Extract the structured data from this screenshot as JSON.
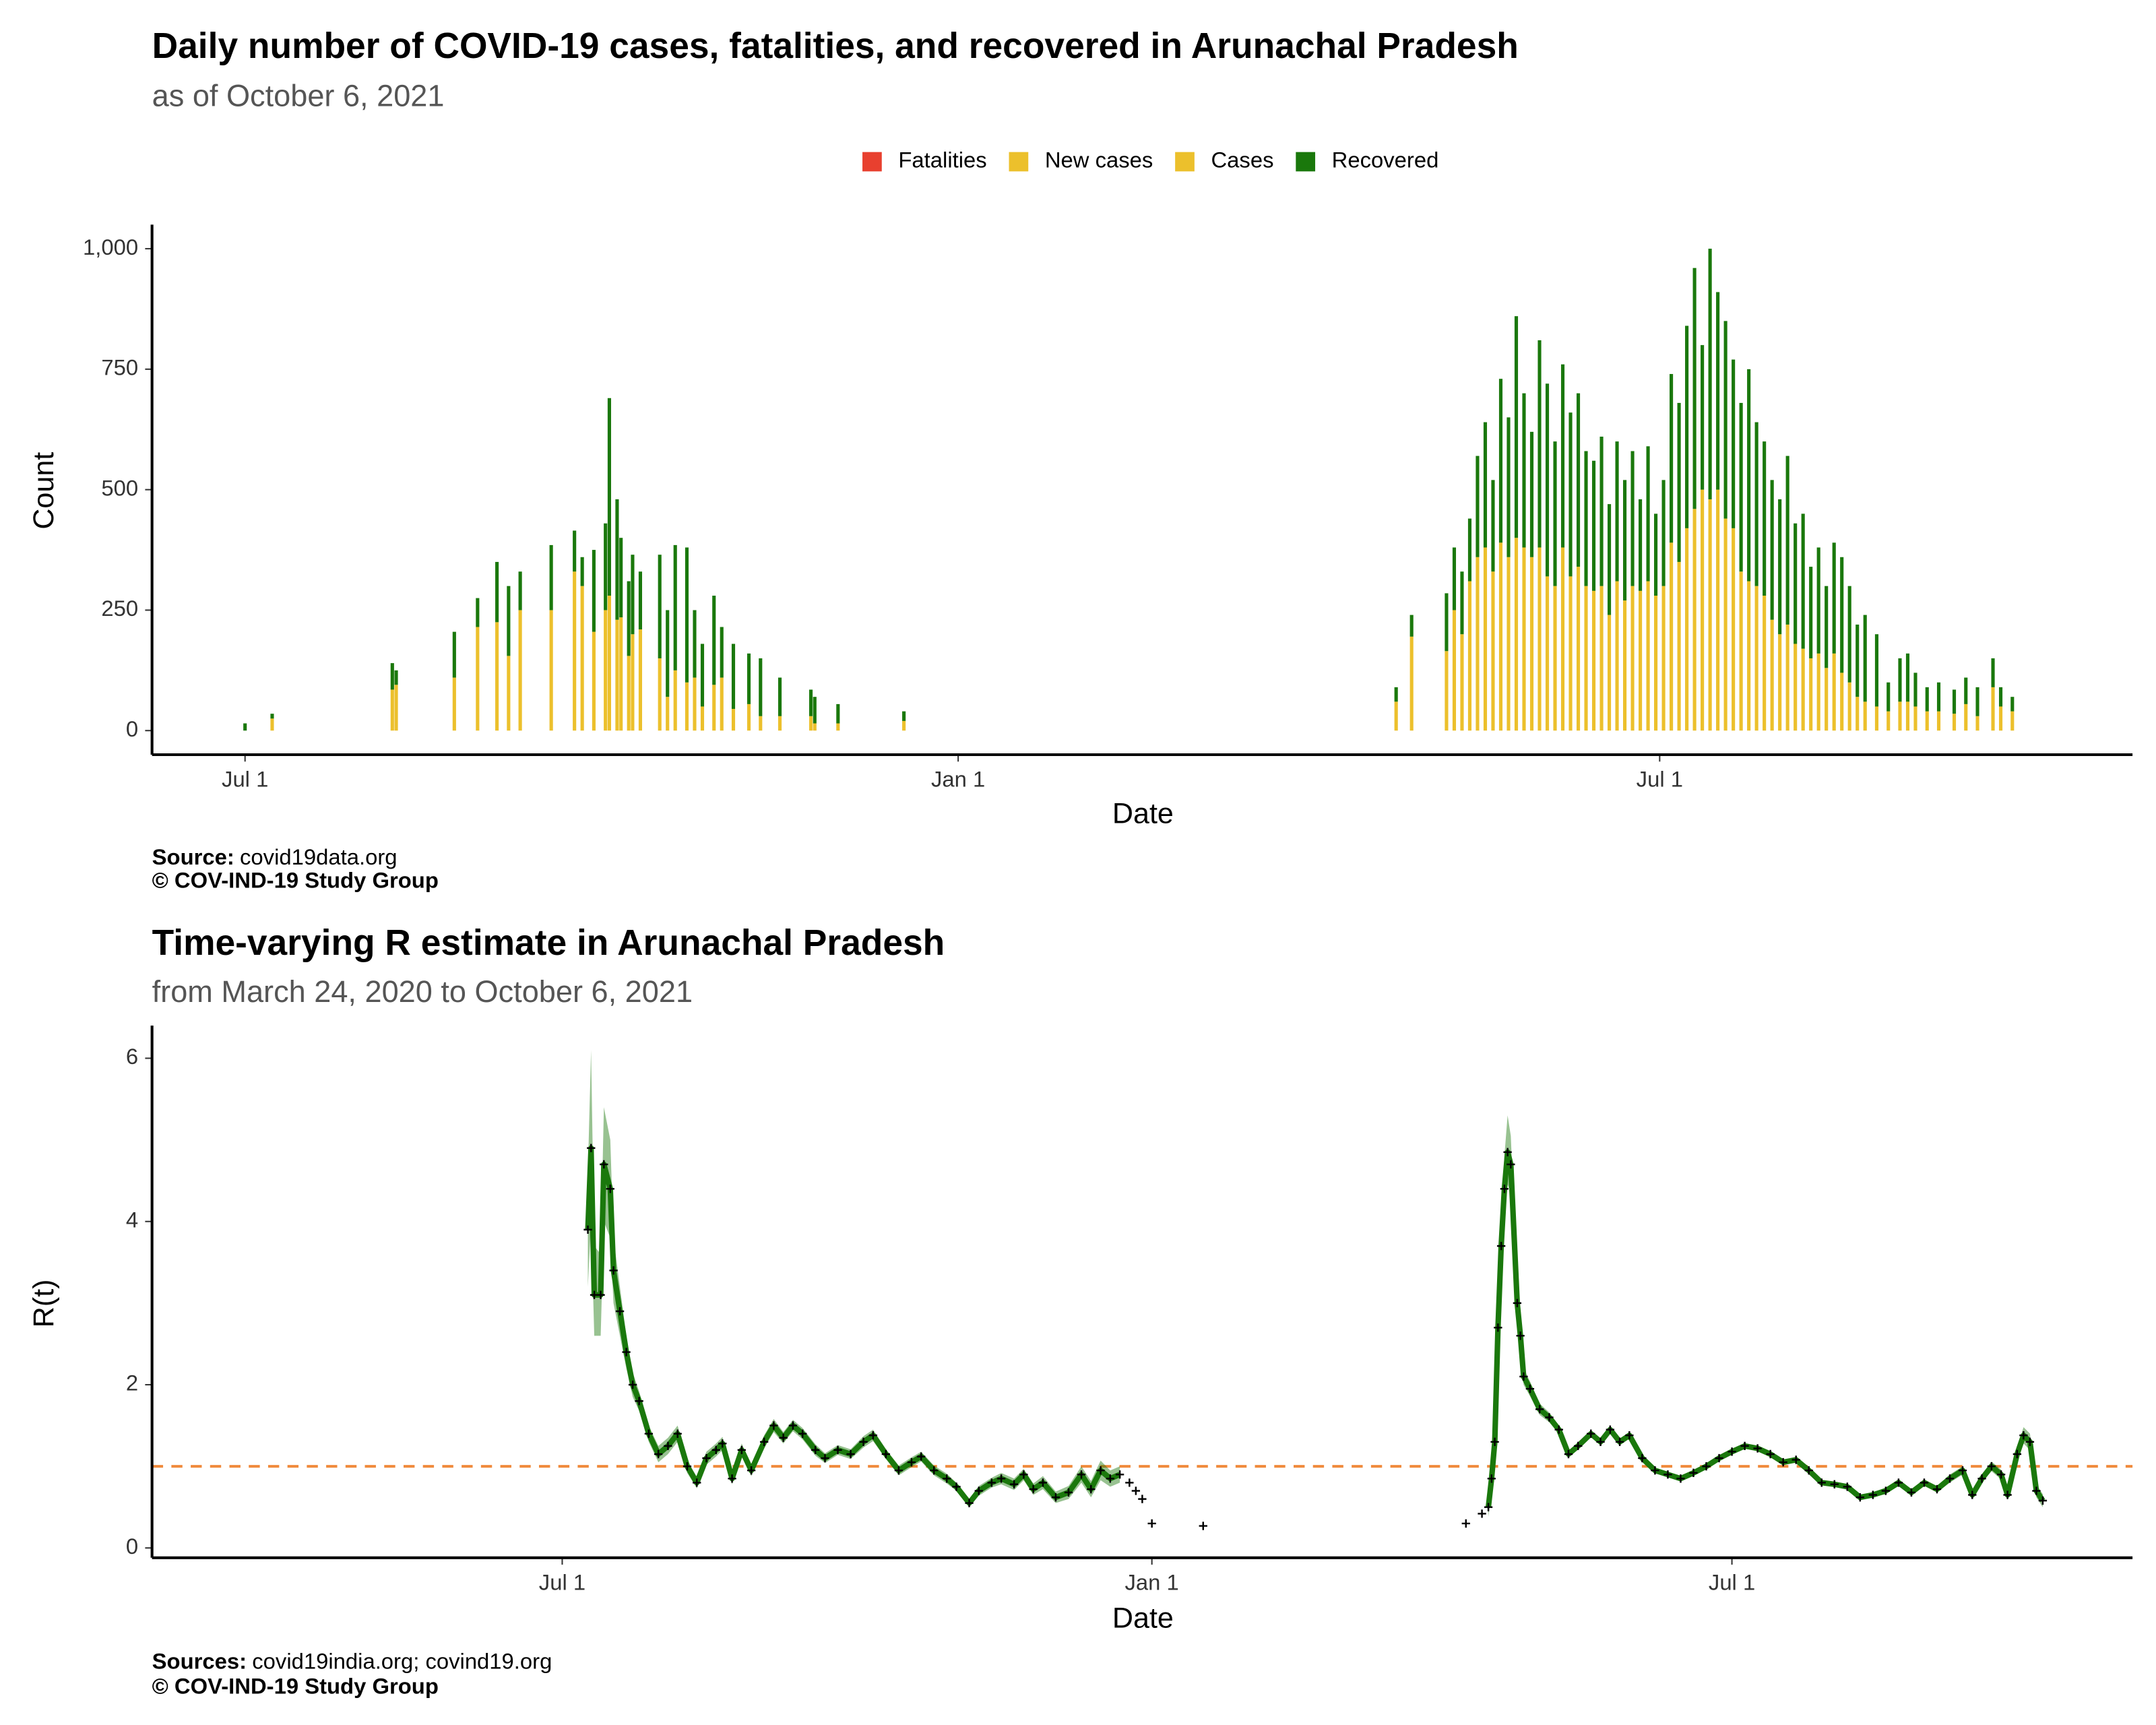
{
  "chart_data": [
    {
      "type": "bar",
      "title": "Daily number of COVID-19 cases, fatalities, and recovered in Arunachal Pradesh",
      "subtitle": "as of October  6, 2021",
      "legend": "top",
      "xlabel": "Date",
      "ylabel": "Count",
      "source_label": "Source:",
      "source": "covid19data.org",
      "copyright": "© COV-IND-19 Study Group",
      "xlim": [
        "2020-06-07",
        "2021-10-31"
      ],
      "xticks": [
        {
          "value": "2020-07-01",
          "label": "Jul 1"
        },
        {
          "value": "2021-01-01",
          "label": "Jan 1"
        },
        {
          "value": "2021-07-01",
          "label": "Jul 1"
        }
      ],
      "ylim": [
        -50,
        1050
      ],
      "yticks": [
        0,
        250,
        500,
        750,
        {
          "value": 1000,
          "label": "1,000"
        }
      ],
      "x": [
        "2020-07-01",
        "2020-07-08",
        "2020-08-08",
        "2020-08-09",
        "2020-08-24",
        "2020-08-30",
        "2020-09-04",
        "2020-09-07",
        "2020-09-10",
        "2020-09-18",
        "2020-09-24",
        "2020-09-26",
        "2020-09-29",
        "2020-10-02",
        "2020-10-03",
        "2020-10-05",
        "2020-10-06",
        "2020-10-08",
        "2020-10-09",
        "2020-10-11",
        "2020-10-16",
        "2020-10-18",
        "2020-10-20",
        "2020-10-23",
        "2020-10-25",
        "2020-10-27",
        "2020-10-30",
        "2020-11-01",
        "2020-11-04",
        "2020-11-08",
        "2020-11-11",
        "2020-11-16",
        "2020-11-24",
        "2020-11-25",
        "2020-12-01",
        "2020-12-18",
        "2021-04-24",
        "2021-04-28",
        "2021-05-07",
        "2021-05-09",
        "2021-05-11",
        "2021-05-13",
        "2021-05-15",
        "2021-05-17",
        "2021-05-19",
        "2021-05-21",
        "2021-05-23",
        "2021-05-25",
        "2021-05-27",
        "2021-05-29",
        "2021-05-31",
        "2021-06-02",
        "2021-06-04",
        "2021-06-06",
        "2021-06-08",
        "2021-06-10",
        "2021-06-12",
        "2021-06-14",
        "2021-06-16",
        "2021-06-18",
        "2021-06-20",
        "2021-06-22",
        "2021-06-24",
        "2021-06-26",
        "2021-06-28",
        "2021-06-30",
        "2021-07-02",
        "2021-07-04",
        "2021-07-06",
        "2021-07-08",
        "2021-07-10",
        "2021-07-12",
        "2021-07-14",
        "2021-07-16",
        "2021-07-18",
        "2021-07-20",
        "2021-07-22",
        "2021-07-24",
        "2021-07-26",
        "2021-07-28",
        "2021-07-30",
        "2021-08-01",
        "2021-08-03",
        "2021-08-05",
        "2021-08-07",
        "2021-08-09",
        "2021-08-11",
        "2021-08-13",
        "2021-08-15",
        "2021-08-17",
        "2021-08-19",
        "2021-08-21",
        "2021-08-23",
        "2021-08-26",
        "2021-08-29",
        "2021-09-01",
        "2021-09-03",
        "2021-09-05",
        "2021-09-08",
        "2021-09-11",
        "2021-09-15",
        "2021-09-18",
        "2021-09-21",
        "2021-09-25",
        "2021-09-27",
        "2021-09-30"
      ],
      "series": [
        {
          "name": "Fatalities",
          "color": "#e8402f",
          "values": [
            0,
            0,
            0,
            0,
            0,
            0,
            0,
            0,
            0,
            0,
            0,
            0,
            0,
            0,
            0,
            0,
            0,
            0,
            0,
            0,
            0,
            0,
            0,
            0,
            0,
            0,
            0,
            0,
            0,
            0,
            0,
            0,
            0,
            0,
            0,
            0,
            0,
            0,
            0,
            0,
            0,
            0,
            0,
            0,
            0,
            0,
            0,
            0,
            0,
            0,
            0,
            0,
            0,
            0,
            0,
            0,
            0,
            0,
            0,
            0,
            0,
            0,
            0,
            0,
            0,
            0,
            0,
            0,
            0,
            0,
            0,
            0,
            0,
            0,
            0,
            0,
            0,
            0,
            0,
            0,
            0,
            0,
            0,
            0,
            0,
            0,
            0,
            0,
            0,
            0,
            0,
            0,
            0,
            0,
            0,
            0,
            0,
            0,
            0,
            0,
            0,
            0,
            0,
            0,
            0,
            0
          ]
        },
        {
          "name": "New cases",
          "color": "#ecc02c",
          "values": [
            0,
            25,
            85,
            95,
            110,
            215,
            225,
            155,
            250,
            250,
            330,
            300,
            205,
            250,
            280,
            230,
            235,
            155,
            200,
            210,
            150,
            70,
            125,
            100,
            110,
            50,
            95,
            110,
            45,
            55,
            30,
            30,
            30,
            15,
            15,
            20,
            60,
            195,
            165,
            250,
            200,
            310,
            360,
            380,
            330,
            390,
            360,
            400,
            380,
            360,
            380,
            320,
            300,
            380,
            320,
            340,
            300,
            290,
            300,
            240,
            310,
            270,
            300,
            290,
            310,
            280,
            300,
            390,
            350,
            420,
            460,
            500,
            480,
            500,
            440,
            420,
            330,
            310,
            300,
            280,
            230,
            200,
            220,
            180,
            170,
            150,
            160,
            130,
            160,
            120,
            100,
            70,
            60,
            50,
            40,
            60,
            60,
            50,
            40,
            40,
            35,
            55,
            30,
            90,
            50,
            40
          ]
        },
        {
          "name": "Cases",
          "color": "#ecc02c",
          "values": [
            null,
            null,
            null,
            null,
            null,
            null,
            null,
            null,
            null,
            null,
            null,
            null,
            null,
            null,
            null,
            null,
            null,
            null,
            null,
            null,
            null,
            null,
            null,
            null,
            null,
            null,
            null,
            null,
            null,
            null,
            null,
            null,
            null,
            null,
            null,
            null,
            null,
            null,
            null,
            null,
            null,
            null,
            null,
            null,
            null,
            null,
            null,
            null,
            null,
            null,
            null,
            null,
            null,
            null,
            null,
            null,
            null,
            null,
            null,
            null,
            null,
            null,
            null,
            null,
            null,
            null,
            null,
            null,
            null,
            null,
            null,
            null,
            null,
            null,
            null,
            null,
            null,
            null,
            null,
            null,
            null,
            null,
            null,
            null,
            null,
            null,
            null,
            null,
            null,
            null,
            null,
            null,
            null,
            null,
            null,
            null,
            null,
            null,
            null,
            null,
            null,
            null,
            null,
            null,
            null,
            null
          ]
        },
        {
          "name": "Recovered",
          "color": "#1a780c",
          "values": [
            15,
            10,
            55,
            30,
            95,
            60,
            125,
            145,
            80,
            135,
            85,
            60,
            170,
            180,
            410,
            250,
            165,
            155,
            165,
            120,
            215,
            180,
            260,
            280,
            140,
            130,
            185,
            105,
            135,
            105,
            120,
            80,
            55,
            55,
            40,
            20,
            30,
            45,
            120,
            130,
            130,
            130,
            210,
            260,
            190,
            340,
            290,
            460,
            320,
            260,
            430,
            400,
            300,
            380,
            340,
            360,
            280,
            270,
            310,
            230,
            290,
            250,
            280,
            190,
            280,
            170,
            220,
            350,
            330,
            420,
            500,
            300,
            520,
            410,
            410,
            350,
            350,
            440,
            340,
            320,
            290,
            280,
            350,
            250,
            280,
            190,
            220,
            170,
            230,
            240,
            200,
            150,
            180,
            150,
            60,
            90,
            100,
            70,
            50,
            60,
            50,
            55,
            60,
            60,
            40,
            30
          ]
        }
      ]
    },
    {
      "type": "line",
      "title": "Time-varying R estimate in Arunachal Pradesh",
      "subtitle": "from March 24, 2020 to October  6, 2021",
      "xlabel": "Date",
      "ylabel": "R(t)",
      "source_label": "Sources:",
      "source": "covid19india.org; covind19.org",
      "copyright": "© COV-IND-19 Study Group",
      "color": "#1a780c",
      "point_color": "#000000",
      "hline": 1,
      "hline_color": "#f08a3c",
      "xlim": [
        "2020-02-24",
        "2021-11-03"
      ],
      "xticks": [
        {
          "value": "2020-07-01",
          "label": "Jul 1"
        },
        {
          "value": "2021-01-01",
          "label": "Jan 1"
        },
        {
          "value": "2021-07-01",
          "label": "Jul 1"
        }
      ],
      "ylim": [
        -0.12,
        6.4
      ],
      "yticks": [
        0,
        2,
        4,
        6
      ],
      "x": [
        "2020-07-09",
        "2020-07-10",
        "2020-07-11",
        "2020-07-13",
        "2020-07-14",
        "2020-07-16",
        "2020-07-17",
        "2020-07-19",
        "2020-07-21",
        "2020-07-23",
        "2020-07-25",
        "2020-07-28",
        "2020-07-31",
        "2020-08-03",
        "2020-08-06",
        "2020-08-09",
        "2020-08-12",
        "2020-08-15",
        "2020-08-18",
        "2020-08-20",
        "2020-08-23",
        "2020-08-26",
        "2020-08-29",
        "2020-09-02",
        "2020-09-05",
        "2020-09-08",
        "2020-09-11",
        "2020-09-14",
        "2020-09-18",
        "2020-09-21",
        "2020-09-25",
        "2020-09-29",
        "2020-10-03",
        "2020-10-06",
        "2020-10-10",
        "2020-10-14",
        "2020-10-18",
        "2020-10-21",
        "2020-10-25",
        "2020-10-29",
        "2020-11-01",
        "2020-11-05",
        "2020-11-08",
        "2020-11-12",
        "2020-11-15",
        "2020-11-19",
        "2020-11-22",
        "2020-11-25",
        "2020-11-28",
        "2020-12-02",
        "2020-12-06",
        "2020-12-10",
        "2020-12-13",
        "2020-12-16",
        "2020-12-19",
        "2020-12-22",
        "2020-12-24",
        "2020-12-25",
        "2020-12-26",
        "2020-12-27",
        "2020-12-28",
        "2020-12-29",
        "2020-12-30",
        "2021-01-01",
        "2021-01-02",
        "2021-01-17",
        "2021-01-18",
        "2021-04-09",
        "2021-04-10",
        "2021-04-14",
        "2021-04-15",
        "2021-04-16",
        "2021-04-17",
        "2021-04-18",
        "2021-04-19",
        "2021-04-20",
        "2021-04-21",
        "2021-04-22",
        "2021-04-23",
        "2021-04-25",
        "2021-04-26",
        "2021-04-27",
        "2021-04-29",
        "2021-05-02",
        "2021-05-05",
        "2021-05-08",
        "2021-05-11",
        "2021-05-14",
        "2021-05-18",
        "2021-05-21",
        "2021-05-24",
        "2021-05-27",
        "2021-05-30",
        "2021-06-03",
        "2021-06-07",
        "2021-06-11",
        "2021-06-15",
        "2021-06-19",
        "2021-06-23",
        "2021-06-27",
        "2021-07-01",
        "2021-07-05",
        "2021-07-09",
        "2021-07-13",
        "2021-07-17",
        "2021-07-21",
        "2021-07-25",
        "2021-07-29",
        "2021-08-02",
        "2021-08-06",
        "2021-08-10",
        "2021-08-14",
        "2021-08-18",
        "2021-08-22",
        "2021-08-26",
        "2021-08-30",
        "2021-09-03",
        "2021-09-07",
        "2021-09-11",
        "2021-09-14",
        "2021-09-17",
        "2021-09-20",
        "2021-09-23",
        "2021-09-25",
        "2021-09-28",
        "2021-09-30",
        "2021-10-02",
        "2021-10-04",
        "2021-10-06"
      ],
      "values": [
        3.9,
        4.9,
        3.1,
        3.1,
        4.7,
        4.4,
        3.4,
        2.9,
        2.4,
        2.0,
        1.8,
        1.4,
        1.15,
        1.25,
        1.4,
        1.0,
        0.8,
        1.1,
        1.2,
        1.28,
        0.85,
        1.2,
        0.95,
        1.3,
        1.5,
        1.35,
        1.5,
        1.4,
        1.2,
        1.1,
        1.2,
        1.15,
        1.3,
        1.38,
        1.15,
        0.95,
        1.05,
        1.12,
        0.95,
        0.85,
        0.75,
        0.55,
        0.7,
        0.8,
        0.85,
        0.78,
        0.9,
        0.72,
        0.8,
        0.62,
        0.68,
        0.9,
        0.72,
        0.95,
        0.85,
        0.9,
        null,
        0.8,
        null,
        0.7,
        null,
        0.6,
        null,
        0.3,
        null,
        0.27,
        null,
        0.3,
        null,
        0.42,
        null,
        0.5,
        0.85,
        1.3,
        2.7,
        3.7,
        4.4,
        4.85,
        4.7,
        3.0,
        2.6,
        2.1,
        1.95,
        1.7,
        1.6,
        1.45,
        1.15,
        1.25,
        1.4,
        1.3,
        1.45,
        1.3,
        1.38,
        1.1,
        0.95,
        0.9,
        0.85,
        0.92,
        1.0,
        1.1,
        1.18,
        1.25,
        1.22,
        1.15,
        1.05,
        1.08,
        0.95,
        0.8,
        0.78,
        0.75,
        0.62,
        0.65,
        0.7,
        0.8,
        0.68,
        0.8,
        0.72,
        0.85,
        0.95,
        0.65,
        0.85,
        1.0,
        0.9,
        0.65,
        1.15,
        1.38,
        1.3,
        0.7,
        0.58
      ],
      "lower": [
        3.2,
        4.0,
        2.6,
        2.6,
        4.0,
        3.8,
        3.0,
        2.6,
        2.2,
        1.85,
        1.68,
        1.3,
        1.05,
        1.15,
        1.3,
        0.92,
        0.73,
        1.02,
        1.12,
        1.2,
        0.78,
        1.12,
        0.88,
        1.22,
        1.42,
        1.28,
        1.43,
        1.33,
        1.13,
        1.04,
        1.14,
        1.09,
        1.23,
        1.31,
        1.09,
        0.89,
        0.99,
        1.06,
        0.89,
        0.79,
        0.7,
        0.5,
        0.64,
        0.74,
        0.78,
        0.71,
        0.83,
        0.65,
        0.72,
        0.55,
        0.6,
        0.8,
        0.62,
        0.83,
        0.75,
        0.8,
        null,
        null,
        null,
        null,
        null,
        null,
        null,
        null,
        null,
        null,
        null,
        null,
        null,
        null,
        null,
        0.38,
        0.7,
        1.1,
        2.4,
        3.35,
        4.0,
        4.45,
        4.35,
        2.8,
        2.45,
        2.0,
        1.86,
        1.63,
        1.54,
        1.4,
        1.11,
        1.21,
        1.36,
        1.26,
        1.41,
        1.26,
        1.34,
        1.06,
        0.92,
        0.87,
        0.82,
        0.89,
        0.97,
        1.07,
        1.15,
        1.22,
        1.19,
        1.12,
        1.02,
        1.05,
        0.92,
        0.77,
        0.75,
        0.72,
        0.59,
        0.62,
        0.66,
        0.76,
        0.64,
        0.76,
        0.68,
        0.8,
        0.9,
        0.6,
        0.8,
        0.94,
        0.84,
        0.59,
        1.07,
        1.28,
        1.2,
        0.62,
        0.5
      ],
      "upper": [
        4.6,
        6.1,
        3.7,
        3.6,
        5.4,
        5.0,
        3.8,
        3.2,
        2.6,
        2.15,
        1.92,
        1.5,
        1.25,
        1.35,
        1.5,
        1.08,
        0.87,
        1.18,
        1.28,
        1.36,
        0.92,
        1.28,
        1.02,
        1.38,
        1.58,
        1.42,
        1.57,
        1.47,
        1.27,
        1.16,
        1.26,
        1.21,
        1.37,
        1.45,
        1.21,
        1.01,
        1.11,
        1.18,
        1.01,
        0.91,
        0.8,
        0.6,
        0.76,
        0.86,
        0.92,
        0.85,
        0.97,
        0.79,
        0.88,
        0.69,
        0.76,
        1.0,
        0.82,
        1.07,
        0.95,
        1.0,
        null,
        null,
        null,
        null,
        null,
        null,
        null,
        null,
        null,
        null,
        null,
        null,
        null,
        null,
        null,
        0.62,
        1.0,
        1.5,
        3.0,
        4.05,
        4.8,
        5.3,
        5.05,
        3.2,
        2.75,
        2.2,
        2.04,
        1.77,
        1.66,
        1.5,
        1.19,
        1.29,
        1.44,
        1.34,
        1.49,
        1.34,
        1.42,
        1.14,
        0.98,
        0.93,
        0.88,
        0.95,
        1.03,
        1.13,
        1.21,
        1.28,
        1.25,
        1.18,
        1.08,
        1.11,
        0.98,
        0.83,
        0.81,
        0.78,
        0.65,
        0.68,
        0.74,
        0.84,
        0.72,
        0.84,
        0.76,
        0.9,
        1.0,
        0.7,
        0.9,
        1.06,
        0.96,
        0.71,
        1.23,
        1.48,
        1.4,
        0.78,
        0.66
      ]
    }
  ]
}
